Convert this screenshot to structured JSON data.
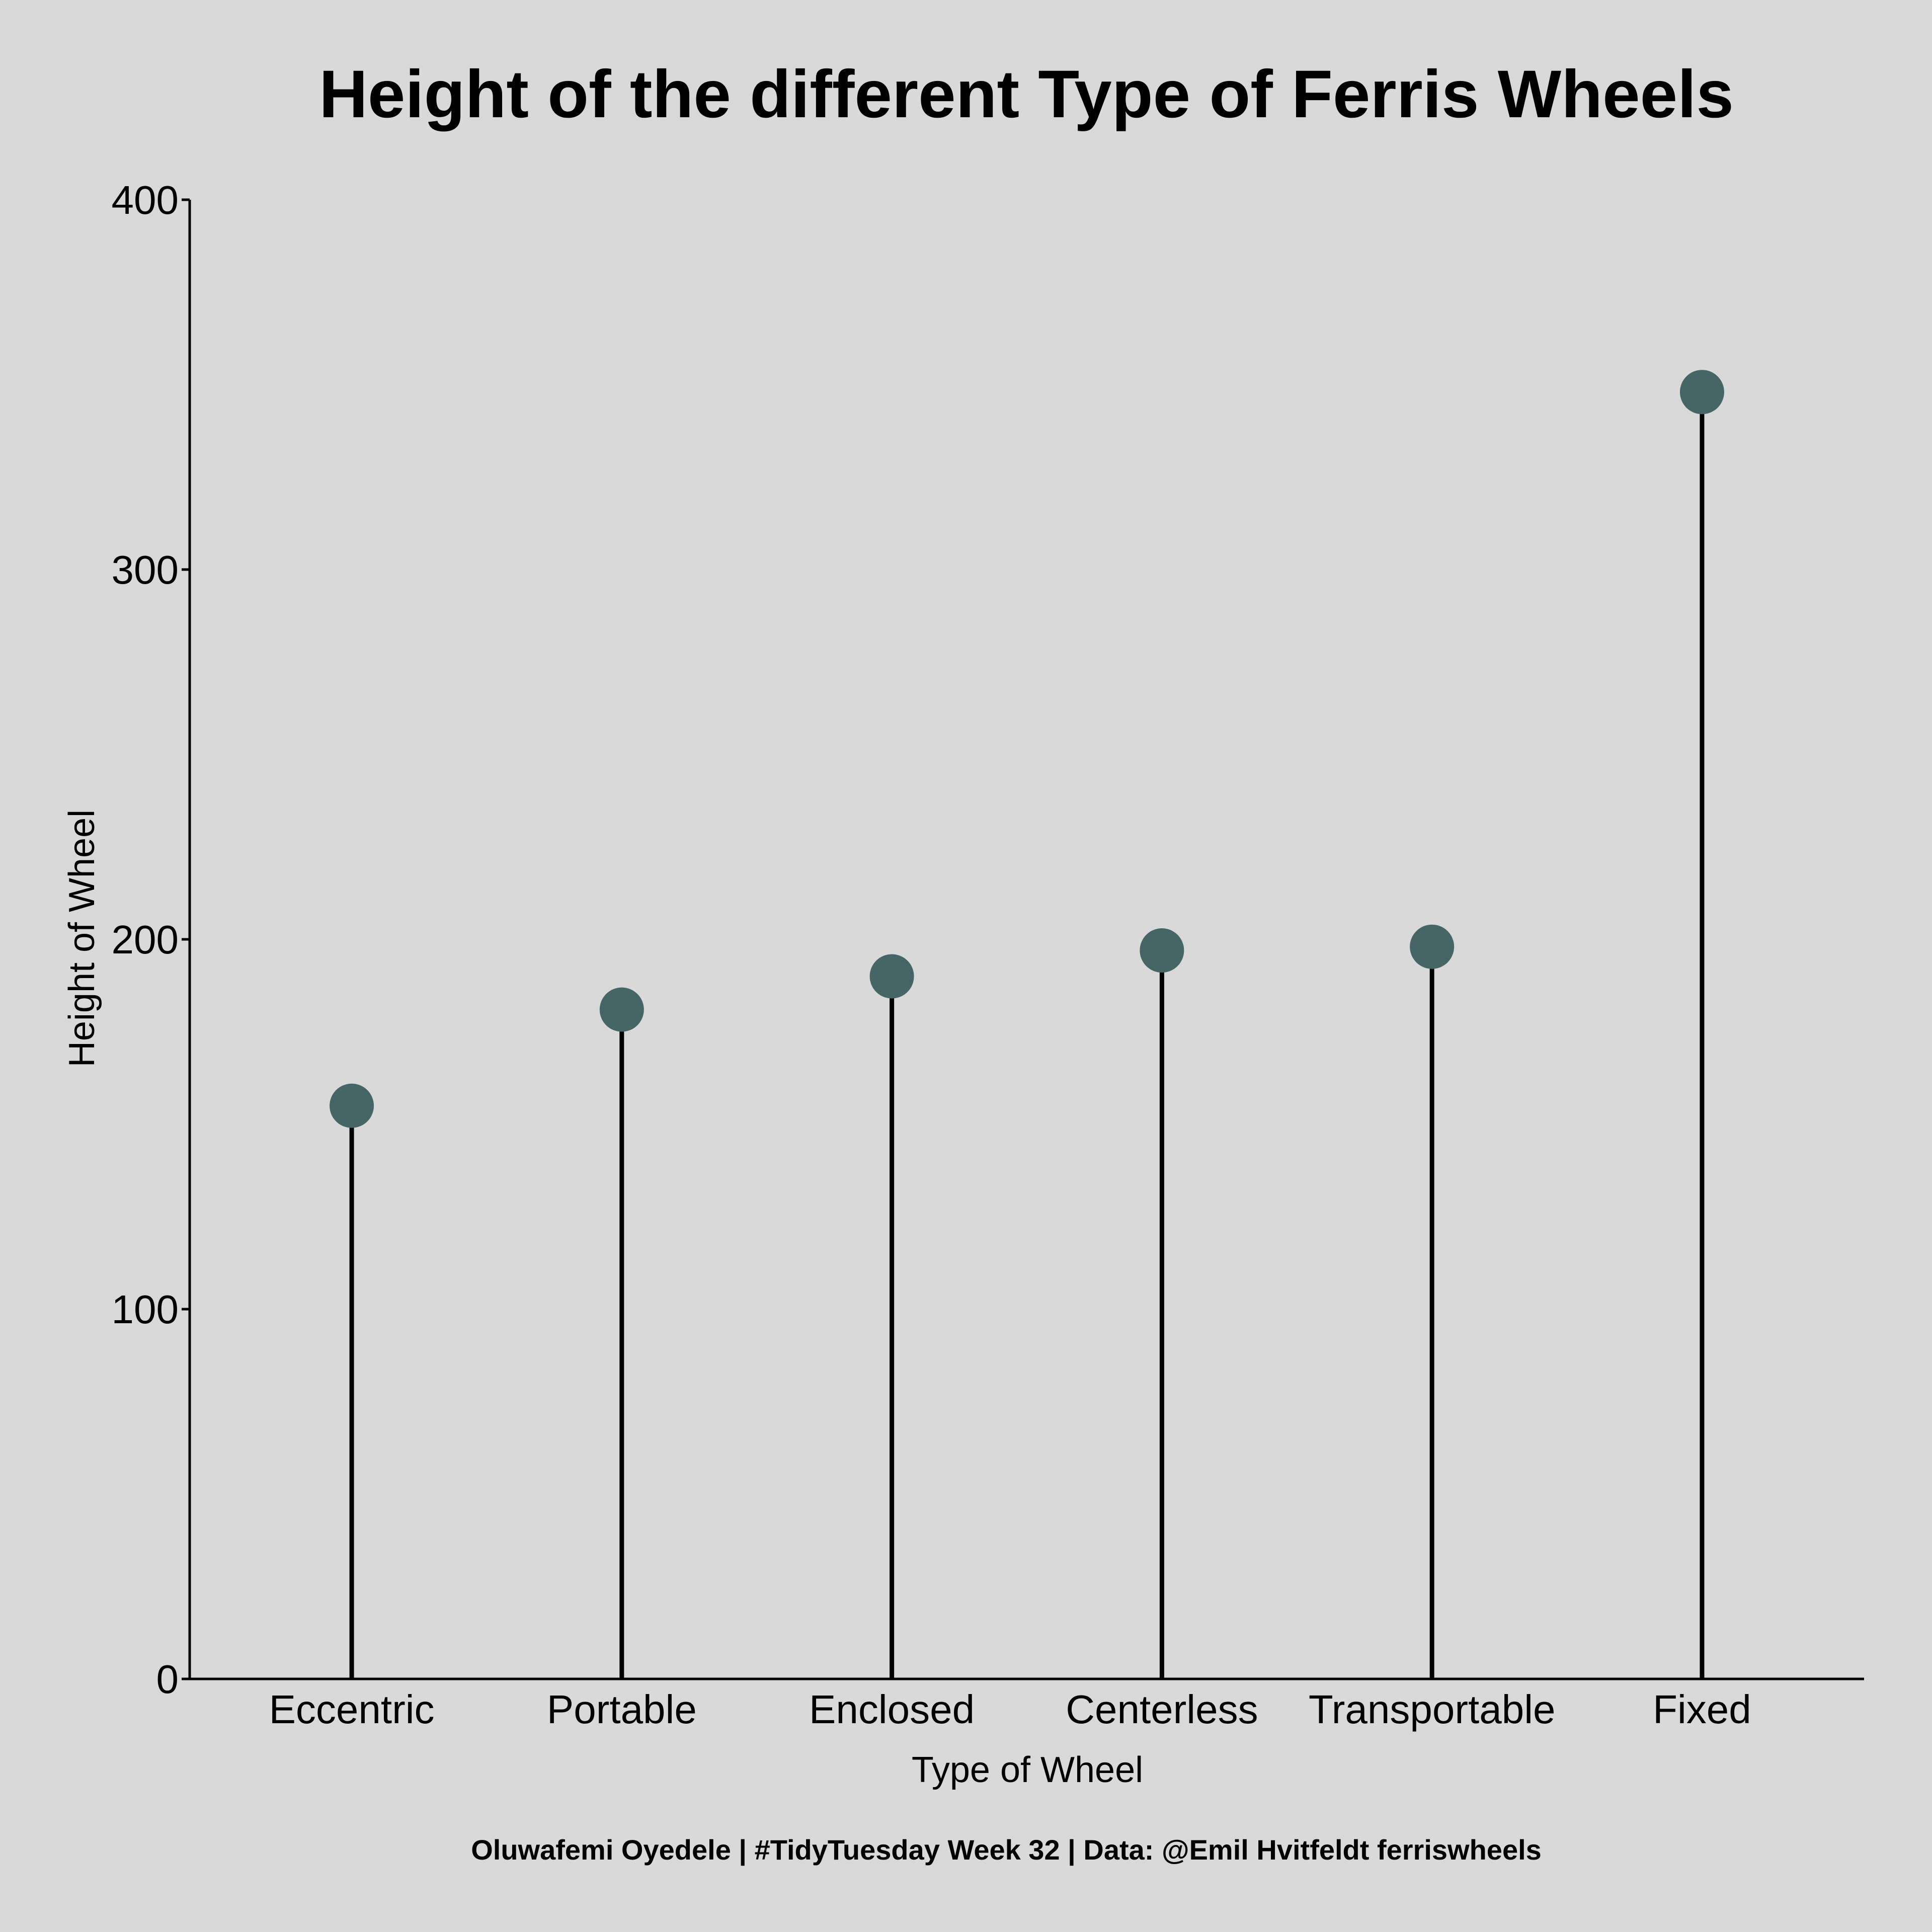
{
  "chart_data": {
    "type": "lollipop",
    "title": "Height of the different Type of Ferris Wheels",
    "xlabel": "Type of Wheel",
    "ylabel": "Height of Wheel",
    "caption": "Oluwafemi Oyedele | #TidyTuesday Week 32 | Data: @Emil Hvitfeldt ferriswheels",
    "categories": [
      "Eccentric",
      "Portable",
      "Enclosed",
      "Centerless",
      "Transportable",
      "Fixed"
    ],
    "values": [
      155,
      181,
      190,
      197,
      198,
      348
    ],
    "ylim": [
      0,
      400
    ],
    "yticks": [
      0,
      100,
      200,
      300,
      400
    ],
    "grid": false,
    "legend": "none",
    "colors": {
      "point": "#456567",
      "stem": "#000000",
      "background": "#d9d9d9"
    }
  }
}
